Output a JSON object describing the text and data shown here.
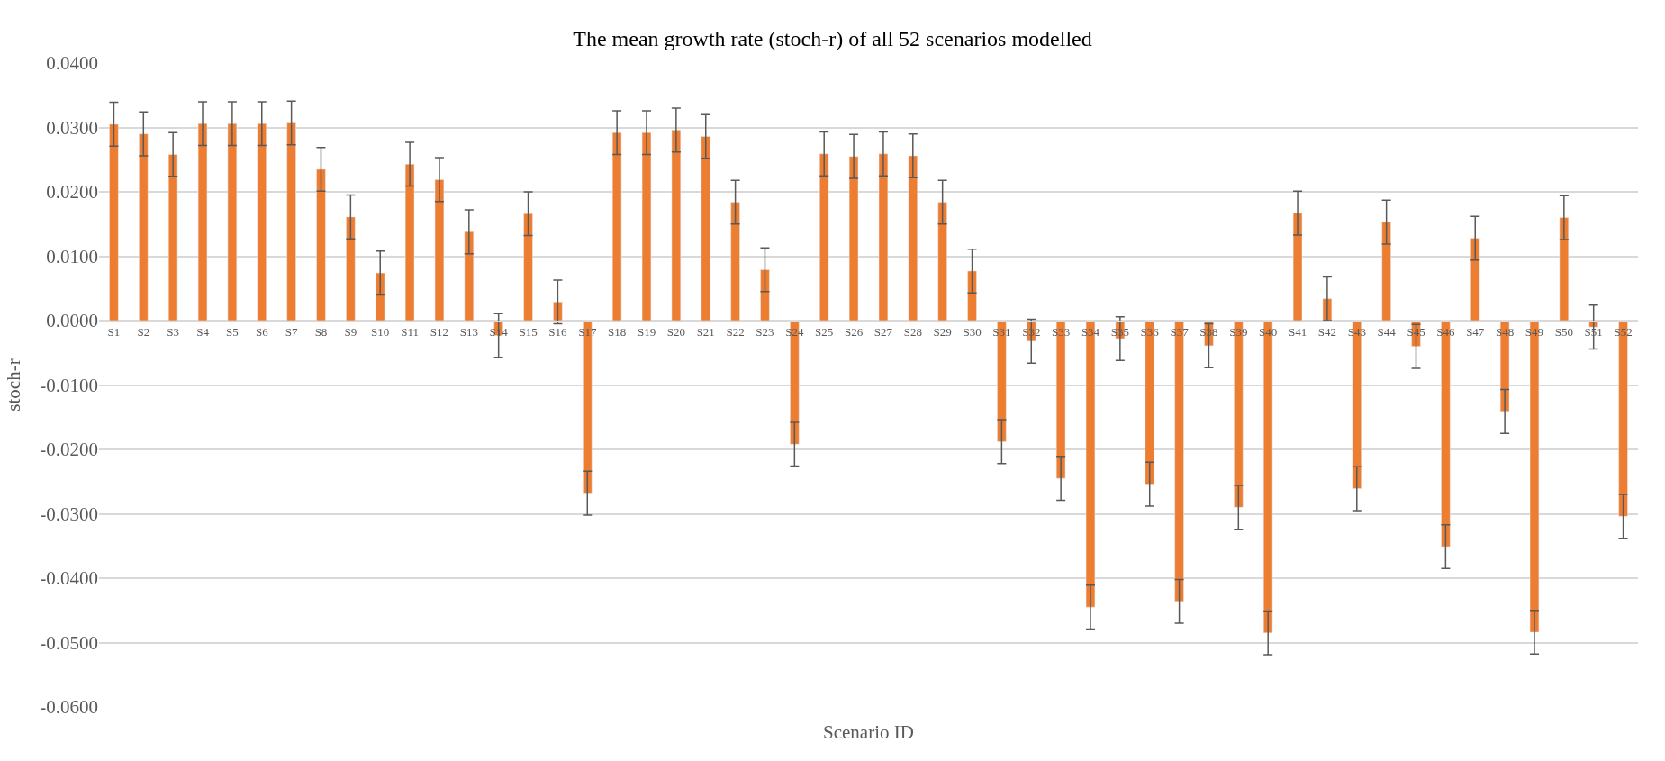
{
  "chart_data": {
    "type": "bar",
    "title": "The mean growth rate (stoch-r) of all 52 scenarios modelled",
    "xlabel": "Scenario ID",
    "ylabel": "stoch-r",
    "categories": [
      "S1",
      "S2",
      "S3",
      "S4",
      "S5",
      "S6",
      "S7",
      "S8",
      "S9",
      "S10",
      "S11",
      "S12",
      "S13",
      "S14",
      "S15",
      "S16",
      "S17",
      "S18",
      "S19",
      "S20",
      "S21",
      "S22",
      "S23",
      "S24",
      "S25",
      "S26",
      "S27",
      "S28",
      "S29",
      "S30",
      "S31",
      "S32",
      "S33",
      "S34",
      "S35",
      "S36",
      "S37",
      "S38",
      "S39",
      "S40",
      "S41",
      "S42",
      "S43",
      "S44",
      "S45",
      "S46",
      "S47",
      "S48",
      "S49",
      "S50",
      "S51",
      "S52"
    ],
    "values": [
      0.0305,
      0.029,
      0.0258,
      0.0306,
      0.0306,
      0.0306,
      0.0307,
      0.0235,
      0.0161,
      0.0074,
      0.0243,
      0.0219,
      0.0138,
      -0.0023,
      0.0166,
      0.0029,
      -0.0268,
      0.0292,
      0.0292,
      0.0296,
      0.0286,
      0.0184,
      0.0079,
      -0.0192,
      0.0259,
      0.0255,
      0.0259,
      0.0256,
      0.0184,
      0.0077,
      -0.0188,
      -0.0032,
      -0.0245,
      -0.0445,
      -0.0028,
      -0.0254,
      -0.0436,
      -0.0039,
      -0.029,
      -0.0485,
      0.0167,
      0.0034,
      -0.0261,
      0.0153,
      -0.004,
      -0.0351,
      0.0128,
      -0.0141,
      -0.0484,
      0.016,
      -0.001,
      -0.0304
    ],
    "errors": [
      0.0034,
      0.0034,
      0.0034,
      0.0034,
      0.0034,
      0.0034,
      0.0034,
      0.0034,
      0.0034,
      0.0034,
      0.0034,
      0.0034,
      0.0034,
      0.0034,
      0.0034,
      0.0034,
      0.0034,
      0.0034,
      0.0034,
      0.0034,
      0.0034,
      0.0034,
      0.0034,
      0.0034,
      0.0034,
      0.0034,
      0.0034,
      0.0034,
      0.0034,
      0.0034,
      0.0034,
      0.0034,
      0.0034,
      0.0034,
      0.0034,
      0.0034,
      0.0034,
      0.0034,
      0.0034,
      0.0034,
      0.0034,
      0.0034,
      0.0034,
      0.0034,
      0.0034,
      0.0034,
      0.0034,
      0.0034,
      0.0034,
      0.0034,
      0.0034,
      0.0034
    ],
    "color": "#ed7d31",
    "ylim": [
      -0.06,
      0.04
    ],
    "yticks": [
      {
        "value": -0.06,
        "label": "-0.0600"
      },
      {
        "value": -0.05,
        "label": "-0.0500"
      },
      {
        "value": -0.04,
        "label": "-0.0400"
      },
      {
        "value": -0.03,
        "label": "-0.0300"
      },
      {
        "value": -0.02,
        "label": "-0.0200"
      },
      {
        "value": -0.01,
        "label": "-0.0100"
      },
      {
        "value": 0,
        "label": "0.0000"
      },
      {
        "value": 0.01,
        "label": "0.0100"
      },
      {
        "value": 0.02,
        "label": "0.0200"
      },
      {
        "value": 0.03,
        "label": "0.0300"
      },
      {
        "value": 0.04,
        "label": "0.0400"
      }
    ],
    "grid": "y"
  }
}
